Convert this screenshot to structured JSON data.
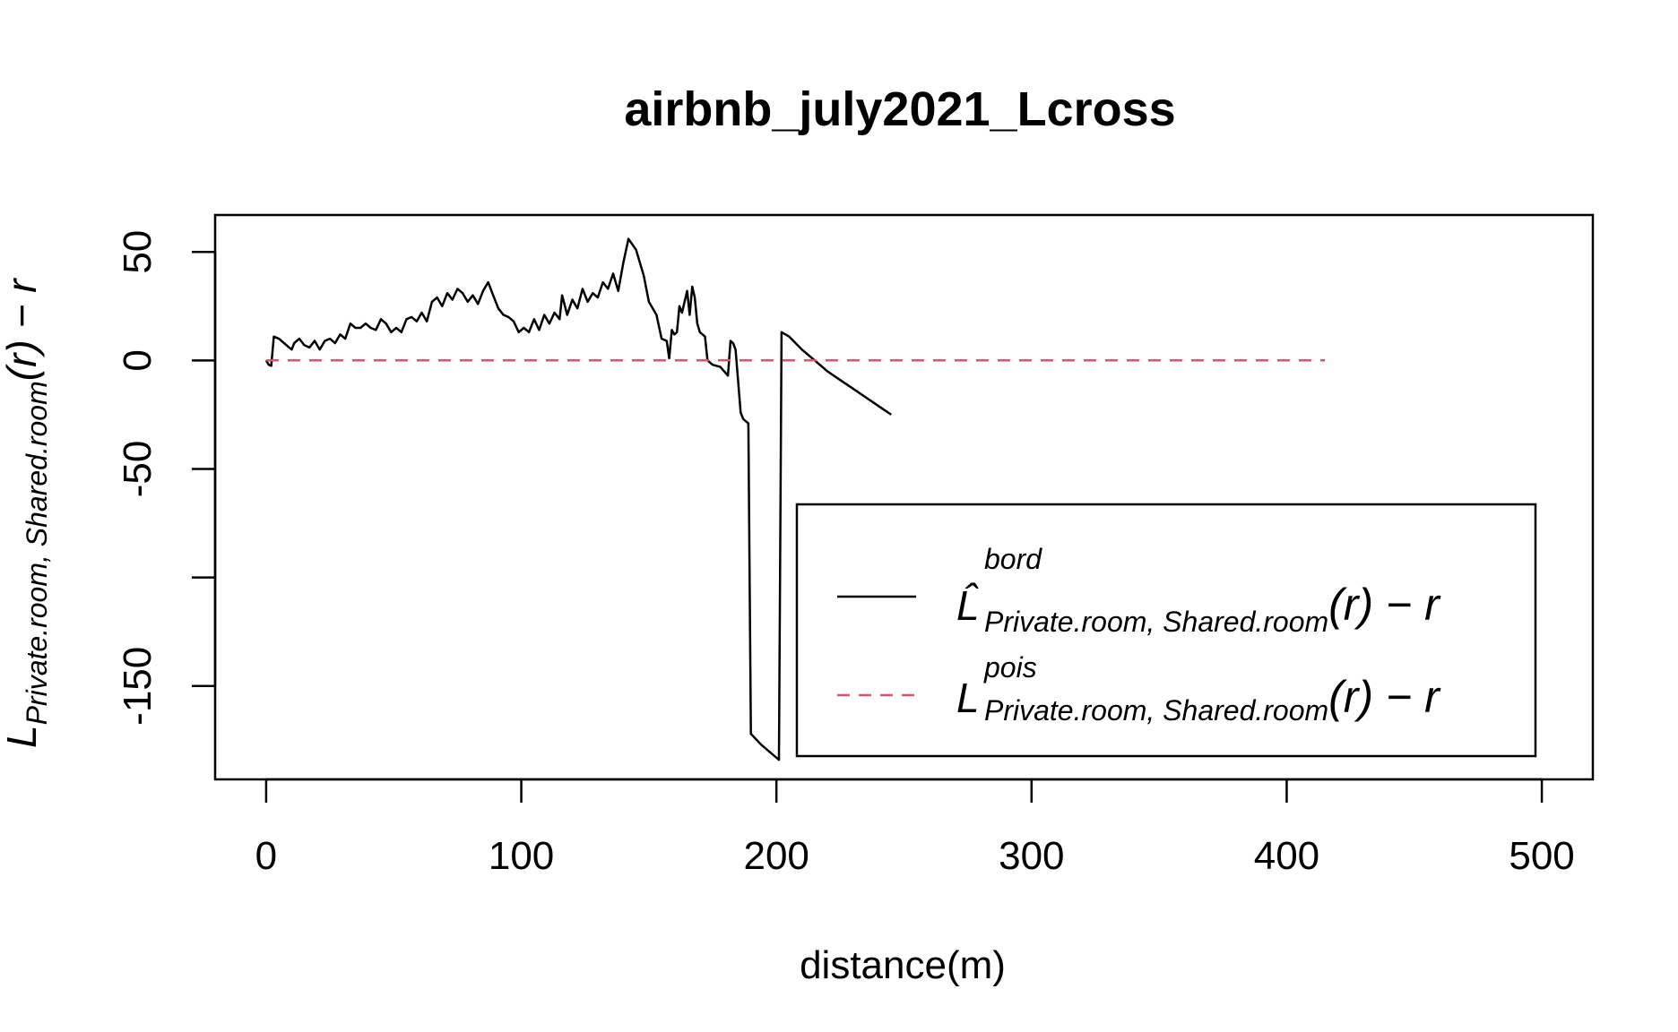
{
  "chart_data": {
    "type": "line",
    "title": "airbnb_july2021_Lcross",
    "xlabel": "distance(m)",
    "ylabel": {
      "main": "L",
      "sub": "Private.room, Shared.room",
      "suffix": "(r) − r"
    },
    "xlim": [
      -20,
      520
    ],
    "ylim": [
      -193,
      67
    ],
    "x_ticks": [
      0,
      100,
      200,
      300,
      400,
      500
    ],
    "x_tick_labels": [
      "0",
      "100",
      "200",
      "300",
      "400",
      "500"
    ],
    "y_ticks": [
      50,
      0,
      -50,
      -100,
      -150
    ],
    "y_tick_labels": [
      "50",
      "0",
      "-50",
      "",
      "-150"
    ],
    "grid": false,
    "legend_position": "bottom-right",
    "series": [
      {
        "key": "bord",
        "legend_main": "L̂",
        "legend_sup": "bord",
        "legend_sub": "Private.room, Shared.room",
        "legend_suffix": "(r) − r",
        "color": "#000000",
        "dash": "solid",
        "points": [
          [
            0,
            0
          ],
          [
            1,
            -2
          ],
          [
            2,
            -2.5
          ],
          [
            3,
            11
          ],
          [
            5,
            10
          ],
          [
            7,
            8
          ],
          [
            9,
            6
          ],
          [
            10,
            5
          ],
          [
            11,
            8
          ],
          [
            13,
            10
          ],
          [
            15,
            7
          ],
          [
            17,
            6
          ],
          [
            19,
            9
          ],
          [
            21,
            5
          ],
          [
            23,
            9
          ],
          [
            25,
            10
          ],
          [
            27,
            8
          ],
          [
            29,
            12
          ],
          [
            31,
            10
          ],
          [
            33,
            17
          ],
          [
            35,
            15
          ],
          [
            37,
            15
          ],
          [
            39,
            17
          ],
          [
            41,
            15
          ],
          [
            43,
            14
          ],
          [
            45,
            19
          ],
          [
            47,
            17
          ],
          [
            49,
            13
          ],
          [
            51,
            15
          ],
          [
            53,
            13
          ],
          [
            55,
            19
          ],
          [
            57,
            20
          ],
          [
            59,
            18
          ],
          [
            61,
            22
          ],
          [
            63,
            18
          ],
          [
            65,
            27
          ],
          [
            67,
            29
          ],
          [
            69,
            25
          ],
          [
            71,
            31
          ],
          [
            73,
            28
          ],
          [
            75,
            33
          ],
          [
            77,
            31
          ],
          [
            79,
            27
          ],
          [
            81,
            30
          ],
          [
            83,
            26
          ],
          [
            85,
            32
          ],
          [
            87,
            36
          ],
          [
            89,
            30
          ],
          [
            91,
            24
          ],
          [
            93,
            21
          ],
          [
            95,
            20
          ],
          [
            97,
            18
          ],
          [
            99,
            13
          ],
          [
            101,
            15
          ],
          [
            103,
            13
          ],
          [
            105,
            19
          ],
          [
            107,
            14
          ],
          [
            109,
            21
          ],
          [
            111,
            17
          ],
          [
            113,
            22
          ],
          [
            115,
            19
          ],
          [
            116,
            30
          ],
          [
            118,
            21
          ],
          [
            120,
            28
          ],
          [
            122,
            24
          ],
          [
            124,
            33
          ],
          [
            126,
            27
          ],
          [
            128,
            31
          ],
          [
            130,
            29
          ],
          [
            132,
            36
          ],
          [
            134,
            33
          ],
          [
            136,
            40
          ],
          [
            138,
            32
          ],
          [
            140,
            45
          ],
          [
            142,
            56
          ],
          [
            145,
            51
          ],
          [
            148,
            39
          ],
          [
            150,
            27
          ],
          [
            153,
            21
          ],
          [
            155,
            10
          ],
          [
            157,
            9
          ],
          [
            158,
            1
          ],
          [
            159,
            14
          ],
          [
            160,
            12
          ],
          [
            161,
            13
          ],
          [
            162,
            25
          ],
          [
            163,
            22
          ],
          [
            164,
            27
          ],
          [
            165,
            32
          ],
          [
            166,
            21
          ],
          [
            167,
            34
          ],
          [
            168,
            29
          ],
          [
            169,
            17
          ],
          [
            170,
            13
          ],
          [
            172,
            11
          ],
          [
            173,
            0
          ],
          [
            175,
            -2
          ],
          [
            178,
            -3
          ],
          [
            181,
            -7
          ],
          [
            182,
            9
          ],
          [
            183,
            8
          ],
          [
            184,
            5
          ],
          [
            186,
            -24
          ],
          [
            187,
            -27
          ],
          [
            188,
            -28
          ],
          [
            189,
            -29
          ],
          [
            190,
            -172
          ],
          [
            194,
            -177
          ],
          [
            198,
            -181
          ],
          [
            201,
            -184
          ],
          [
            202,
            13
          ],
          [
            205,
            11
          ],
          [
            210,
            5
          ],
          [
            215,
            0
          ],
          [
            220,
            -5
          ],
          [
            225,
            -9
          ],
          [
            230,
            -13
          ],
          [
            235,
            -17
          ],
          [
            240,
            -21
          ],
          [
            245,
            -25
          ]
        ]
      },
      {
        "key": "pois",
        "legend_main": "L",
        "legend_sup": "pois",
        "legend_sub": "Private.room, Shared.room",
        "legend_suffix": "(r) − r",
        "color": "#DF536B",
        "dash": "dashed",
        "points": [
          [
            0,
            0
          ],
          [
            415,
            0
          ]
        ]
      }
    ]
  }
}
